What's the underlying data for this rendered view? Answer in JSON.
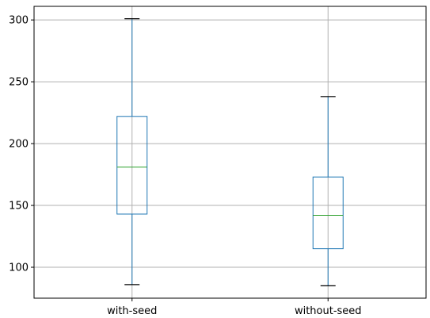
{
  "chart_data": {
    "type": "boxplot",
    "categories": [
      "with-seed",
      "without-seed"
    ],
    "boxes": [
      {
        "name": "with-seed",
        "whisker_low": 86,
        "q1": 143,
        "median": 181,
        "q3": 222,
        "whisker_high": 301
      },
      {
        "name": "without-seed",
        "whisker_low": 85,
        "q1": 115,
        "median": 142,
        "q3": 173,
        "whisker_high": 238
      }
    ],
    "y_ticks": [
      100,
      150,
      200,
      250,
      300
    ],
    "ylim": [
      75,
      311
    ],
    "grid": true,
    "colors": {
      "box": "#1f77b4",
      "median": "#2ca02c",
      "whisker": "#1f77b4",
      "cap": "#000000",
      "grid": "#b0b0b0",
      "axes": "#000000"
    }
  }
}
